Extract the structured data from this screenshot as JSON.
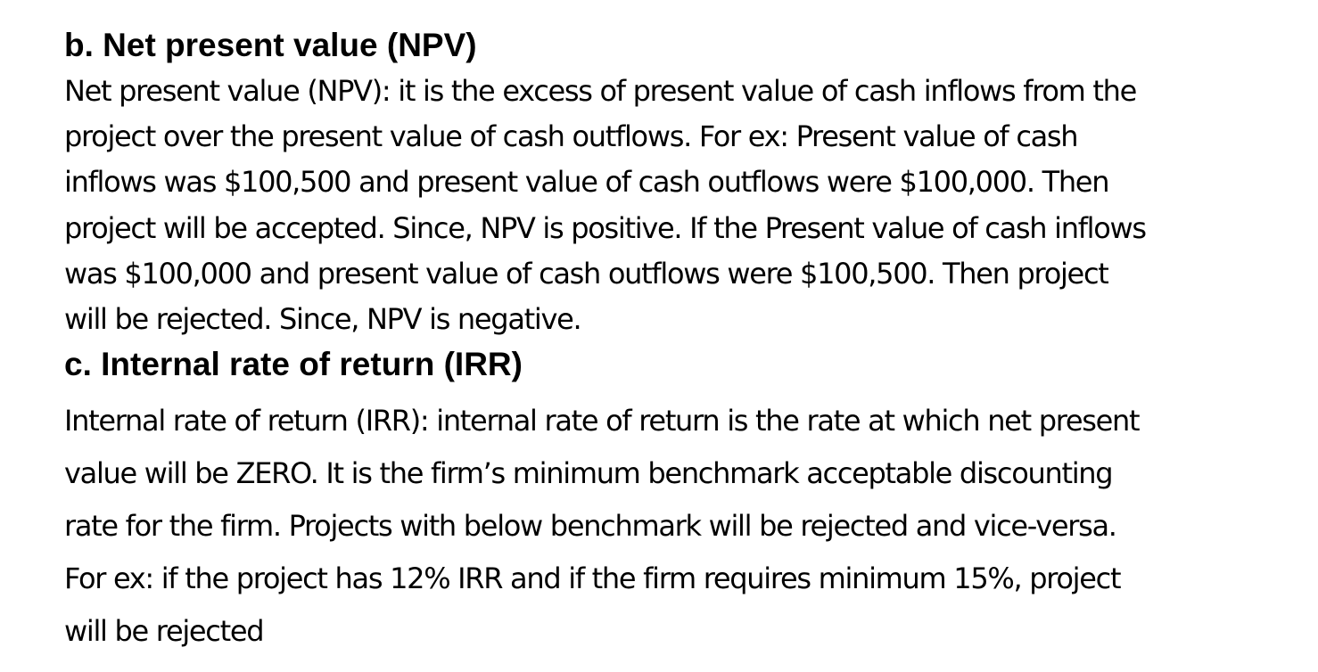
{
  "sections": [
    {
      "heading": "b. Net present value (NPV)",
      "lines": [
        "Net present value (NPV): it is the excess of present value of cash inflows from the",
        "project over the present value of cash outflows. For ex: Present value of cash",
        "inflows was $100,500 and present value of cash outflows were $100,000. Then",
        "project will be accepted. Since, NPV is positive. If the Present value of cash inflows",
        "was $100,000 and present value of cash outflows were $100,500. Then project",
        "will be rejected. Since, NPV is negative."
      ]
    },
    {
      "heading": "c. Internal rate of return (IRR)",
      "lines": [
        "Internal rate of return (IRR): internal rate of return is the rate at which net present",
        "value will be ZERO. It is the firm’s minimum benchmark acceptable discounting",
        "rate for the firm. Projects with below benchmark will be rejected and vice-versa.",
        "For ex: if the project has 12% IRR and if the firm requires minimum 15%, project",
        "will be rejected"
      ]
    }
  ]
}
